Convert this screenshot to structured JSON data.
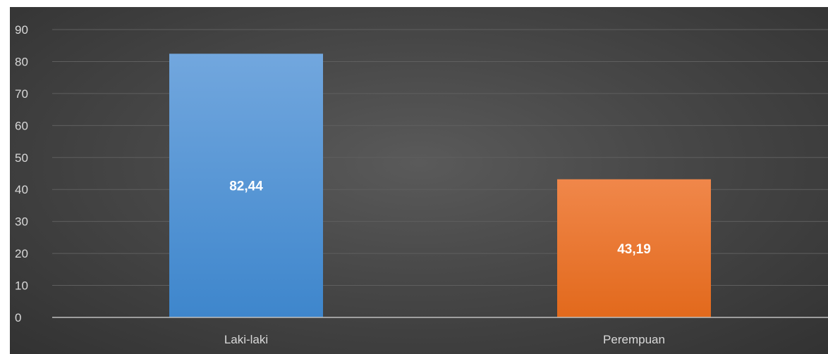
{
  "chart_data": {
    "type": "bar",
    "categories": [
      "Laki-laki",
      "Perempuan"
    ],
    "values": [
      82.44,
      43.19
    ],
    "value_labels": [
      "82,44",
      "43,19"
    ],
    "ylim": [
      0,
      90
    ],
    "yticks": [
      0,
      10,
      20,
      30,
      40,
      50,
      60,
      70,
      80,
      90
    ],
    "grid": true,
    "legend": "none",
    "colors": {
      "background": "#404040",
      "gridline": "#5f5f5f",
      "axis": "#bfbfbf",
      "bars": [
        {
          "top": "#72a7de",
          "bottom": "#3e86cc"
        },
        {
          "top": "#f0874a",
          "bottom": "#e2691c"
        }
      ]
    }
  }
}
